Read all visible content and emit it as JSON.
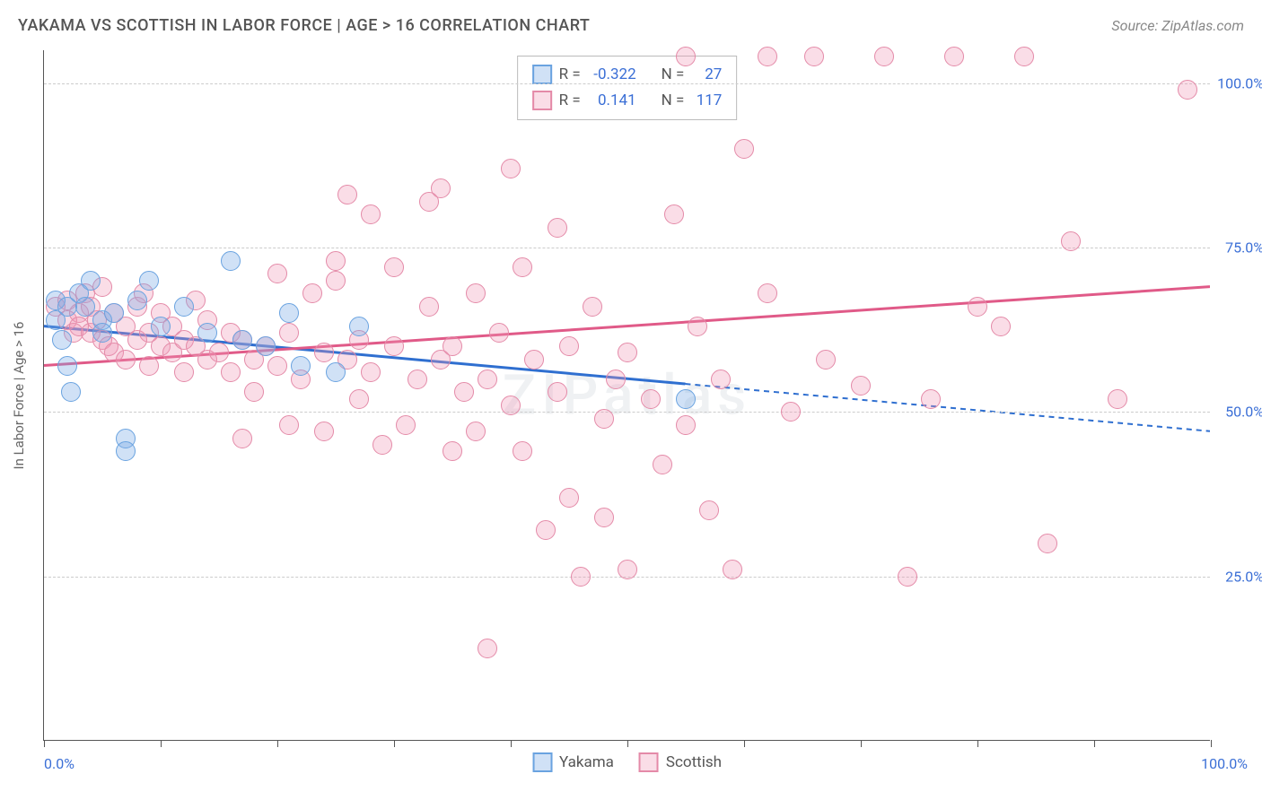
{
  "header": {
    "title": "YAKAMA VS SCOTTISH IN LABOR FORCE | AGE > 16 CORRELATION CHART",
    "source": "Source: ZipAtlas.com"
  },
  "chart": {
    "type": "scatter",
    "ylabel": "In Labor Force | Age > 16",
    "xlim": [
      0,
      100
    ],
    "ylim": [
      0,
      105
    ],
    "y_ticks": [
      25,
      50,
      75,
      100
    ],
    "y_tick_labels": [
      "25.0%",
      "50.0%",
      "75.0%",
      "100.0%"
    ],
    "x_tick_positions": [
      0,
      10,
      20,
      30,
      40,
      50,
      60,
      70,
      80,
      90,
      100
    ],
    "x_min_label": "0.0%",
    "x_max_label": "100.0%",
    "grid_color": "#cccccc",
    "axis_color": "#555555",
    "background_color": "#ffffff",
    "watermark": "ZIPatlas",
    "point_radius": 11,
    "series": [
      {
        "name": "Yakama",
        "fill": "rgba(120,170,230,0.35)",
        "stroke": "#6aa3e0",
        "trend_color": "#2f6fd0",
        "trend_solid_end_x": 55,
        "trend": {
          "x1": 0,
          "y1": 63,
          "x2": 100,
          "y2": 47
        },
        "points": [
          [
            1,
            67
          ],
          [
            1,
            64
          ],
          [
            1.5,
            61
          ],
          [
            2,
            66
          ],
          [
            2,
            57
          ],
          [
            2.3,
            53
          ],
          [
            3,
            68
          ],
          [
            3.5,
            66
          ],
          [
            4,
            70
          ],
          [
            5,
            64
          ],
          [
            5,
            62
          ],
          [
            6,
            65
          ],
          [
            7,
            46
          ],
          [
            7,
            44
          ],
          [
            8,
            67
          ],
          [
            9,
            70
          ],
          [
            10,
            63
          ],
          [
            12,
            66
          ],
          [
            14,
            62
          ],
          [
            16,
            73
          ],
          [
            17,
            61
          ],
          [
            19,
            60
          ],
          [
            21,
            65
          ],
          [
            22,
            57
          ],
          [
            25,
            56
          ],
          [
            27,
            63
          ],
          [
            55,
            52
          ]
        ]
      },
      {
        "name": "Scottish",
        "fill": "rgba(240,150,180,0.32)",
        "stroke": "#e48aa8",
        "trend_color": "#e05a88",
        "trend_solid_end_x": 100,
        "trend": {
          "x1": 0,
          "y1": 57,
          "x2": 100,
          "y2": 69
        },
        "points": [
          [
            1,
            66
          ],
          [
            2,
            67
          ],
          [
            2,
            64
          ],
          [
            2.5,
            62
          ],
          [
            3,
            65
          ],
          [
            3,
            63
          ],
          [
            3.5,
            68
          ],
          [
            4,
            66
          ],
          [
            4,
            62
          ],
          [
            4.5,
            64
          ],
          [
            5,
            69
          ],
          [
            5,
            61
          ],
          [
            5.5,
            60
          ],
          [
            6,
            65
          ],
          [
            6,
            59
          ],
          [
            7,
            63
          ],
          [
            7,
            58
          ],
          [
            8,
            66
          ],
          [
            8,
            61
          ],
          [
            8.5,
            68
          ],
          [
            9,
            57
          ],
          [
            9,
            62
          ],
          [
            10,
            60
          ],
          [
            10,
            65
          ],
          [
            11,
            59
          ],
          [
            11,
            63
          ],
          [
            12,
            56
          ],
          [
            12,
            61
          ],
          [
            13,
            67
          ],
          [
            13,
            60
          ],
          [
            14,
            58
          ],
          [
            14,
            64
          ],
          [
            15,
            59
          ],
          [
            16,
            62
          ],
          [
            16,
            56
          ],
          [
            17,
            46
          ],
          [
            17,
            61
          ],
          [
            18,
            58
          ],
          [
            18,
            53
          ],
          [
            19,
            60
          ],
          [
            20,
            71
          ],
          [
            20,
            57
          ],
          [
            21,
            48
          ],
          [
            21,
            62
          ],
          [
            22,
            55
          ],
          [
            23,
            68
          ],
          [
            24,
            59
          ],
          [
            24,
            47
          ],
          [
            25,
            73
          ],
          [
            25,
            70
          ],
          [
            26,
            83
          ],
          [
            26,
            58
          ],
          [
            27,
            61
          ],
          [
            27,
            52
          ],
          [
            28,
            80
          ],
          [
            28,
            56
          ],
          [
            29,
            45
          ],
          [
            30,
            72
          ],
          [
            30,
            60
          ],
          [
            31,
            48
          ],
          [
            32,
            55
          ],
          [
            33,
            66
          ],
          [
            33,
            82
          ],
          [
            34,
            58
          ],
          [
            34,
            84
          ],
          [
            35,
            60
          ],
          [
            35,
            44
          ],
          [
            36,
            53
          ],
          [
            37,
            68
          ],
          [
            37,
            47
          ],
          [
            38,
            14
          ],
          [
            38,
            55
          ],
          [
            39,
            62
          ],
          [
            40,
            87
          ],
          [
            40,
            51
          ],
          [
            41,
            72
          ],
          [
            41,
            44
          ],
          [
            42,
            58
          ],
          [
            43,
            32
          ],
          [
            44,
            78
          ],
          [
            44,
            53
          ],
          [
            45,
            37
          ],
          [
            45,
            60
          ],
          [
            46,
            25
          ],
          [
            47,
            66
          ],
          [
            48,
            49
          ],
          [
            48,
            34
          ],
          [
            49,
            55
          ],
          [
            50,
            59
          ],
          [
            50,
            26
          ],
          [
            52,
            52
          ],
          [
            53,
            42
          ],
          [
            54,
            80
          ],
          [
            55,
            104
          ],
          [
            55,
            48
          ],
          [
            56,
            63
          ],
          [
            57,
            35
          ],
          [
            58,
            55
          ],
          [
            59,
            26
          ],
          [
            60,
            90
          ],
          [
            62,
            68
          ],
          [
            62,
            104
          ],
          [
            64,
            50
          ],
          [
            66,
            104
          ],
          [
            67,
            58
          ],
          [
            70,
            54
          ],
          [
            72,
            104
          ],
          [
            74,
            25
          ],
          [
            76,
            52
          ],
          [
            78,
            104
          ],
          [
            80,
            66
          ],
          [
            82,
            63
          ],
          [
            84,
            104
          ],
          [
            86,
            30
          ],
          [
            88,
            76
          ],
          [
            92,
            52
          ],
          [
            98,
            99
          ]
        ]
      }
    ],
    "legend_top": {
      "rows": [
        {
          "swatch_fill": "rgba(120,170,230,0.35)",
          "swatch_stroke": "#6aa3e0",
          "r_label": "R =",
          "r_value": "-0.322",
          "n_label": "N =",
          "n_value": "27"
        },
        {
          "swatch_fill": "rgba(240,150,180,0.32)",
          "swatch_stroke": "#e48aa8",
          "r_label": "R =",
          "r_value": "0.141",
          "n_label": "N =",
          "n_value": "117"
        }
      ]
    },
    "legend_bottom": [
      {
        "swatch_fill": "rgba(120,170,230,0.35)",
        "swatch_stroke": "#6aa3e0",
        "label": "Yakama"
      },
      {
        "swatch_fill": "rgba(240,150,180,0.32)",
        "swatch_stroke": "#e48aa8",
        "label": "Scottish"
      }
    ]
  }
}
